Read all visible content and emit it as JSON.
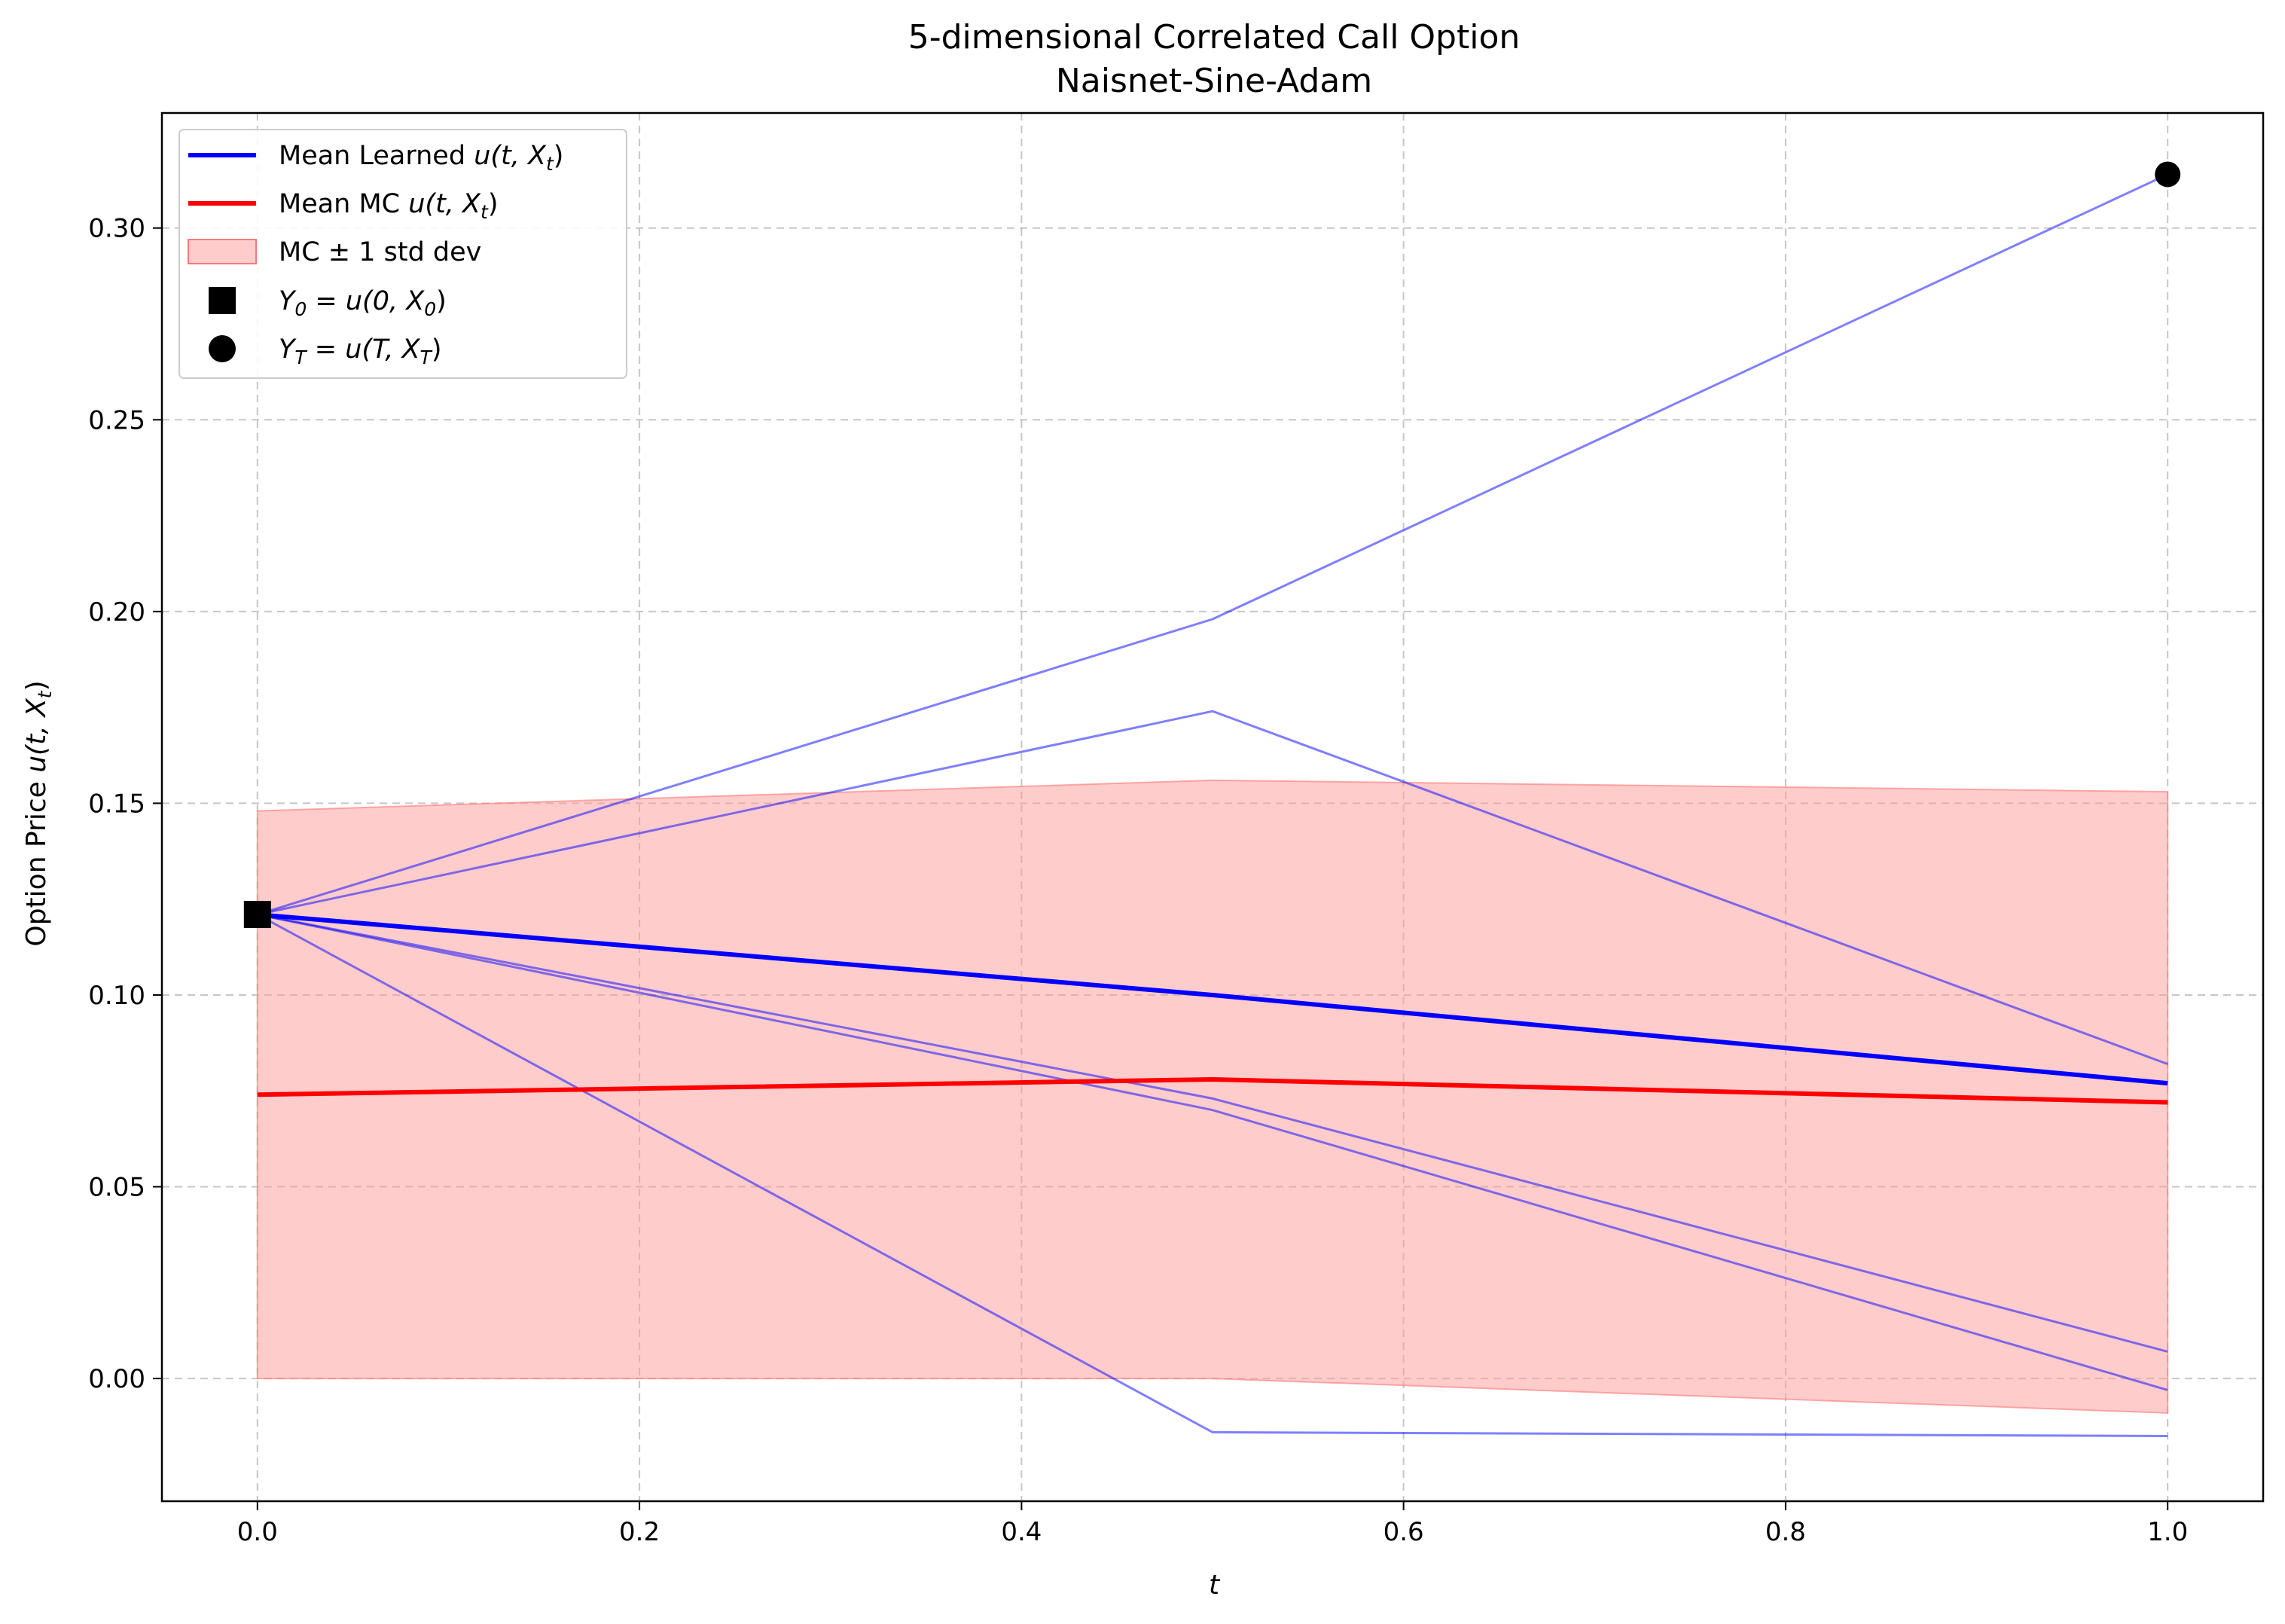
{
  "chart_data": {
    "type": "line",
    "title": "5-dimensional Correlated Call Option",
    "subtitle": "Naisnet-Sine-Adam",
    "xlabel": "t",
    "ylabel_text": "Option Price ",
    "ylabel_math": "u(t, X",
    "ylabel_math_sub": "t",
    "xlim": [
      -0.05,
      1.05
    ],
    "ylim": [
      -0.032,
      0.33
    ],
    "xticks": [
      0.0,
      0.2,
      0.4,
      0.6,
      0.8,
      1.0
    ],
    "xtick_labels": [
      "0.0",
      "0.2",
      "0.4",
      "0.6",
      "0.8",
      "1.0"
    ],
    "yticks": [
      0.0,
      0.05,
      0.1,
      0.15,
      0.2,
      0.25,
      0.3
    ],
    "ytick_labels": [
      "0.00",
      "0.05",
      "0.10",
      "0.15",
      "0.20",
      "0.25",
      "0.30"
    ],
    "grid": true,
    "legend_position": "top-left",
    "x": [
      0.0,
      0.5,
      1.0
    ],
    "sample_paths": [
      [
        0.121,
        0.198,
        0.314
      ],
      [
        0.121,
        0.174,
        0.082
      ],
      [
        0.121,
        0.073,
        0.007
      ],
      [
        0.121,
        0.07,
        -0.003
      ],
      [
        0.121,
        -0.014,
        -0.015
      ]
    ],
    "mean_learned": [
      0.121,
      0.1,
      0.077
    ],
    "mean_mc": [
      0.074,
      0.078,
      0.072
    ],
    "mc_band": {
      "upper": [
        0.148,
        0.156,
        0.153
      ],
      "lower": [
        0.0,
        0.0,
        -0.009
      ]
    },
    "y0_marker": {
      "x": 0.0,
      "y": 0.121
    },
    "yT_marker": {
      "x": 1.0,
      "y": 0.314
    },
    "legend": [
      {
        "key": "mean_learned",
        "text": "Mean Learned ",
        "math": "u(t, X",
        "sub": "t"
      },
      {
        "key": "mean_mc",
        "text": "Mean MC ",
        "math": "u(t, X",
        "sub": "t"
      },
      {
        "key": "band",
        "text": "MC ± 1 std dev"
      },
      {
        "key": "y0",
        "math_a": "Y",
        "sub_a": "0",
        "math_b": " = u(0, X",
        "sub_b": "0"
      },
      {
        "key": "yT",
        "math_a": "Y",
        "sub_a": "T",
        "math_b": " = u(T, X",
        "sub_b": "T"
      }
    ],
    "colors": {
      "learned": "#0000ff",
      "mc": "#ff0000",
      "paths": "#0000ff",
      "band": "#ff9999",
      "markers": "#000000"
    }
  }
}
